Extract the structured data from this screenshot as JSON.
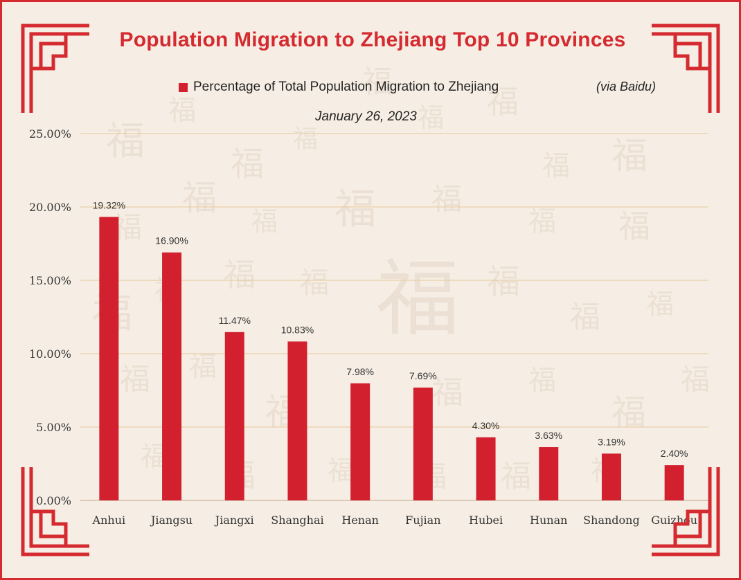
{
  "title": "Population Migration to Zhejiang Top 10 Provinces",
  "legend_label": "Percentage of Total Population Migration to Zhejiang",
  "source": "(via Baidu)",
  "date": "January 26, 2023",
  "colors": {
    "bar": "#d3202e",
    "accent": "#d42a30",
    "background": "#f6eee4",
    "grid": "#e6c89a"
  },
  "chart_data": {
    "type": "bar",
    "title": "Population Migration to Zhejiang Top 10 Provinces",
    "categories": [
      "Anhui",
      "Jiangsu",
      "Jiangxi",
      "Shanghai",
      "Henan",
      "Fujian",
      "Hubei",
      "Hunan",
      "Shandong",
      "Guizhou"
    ],
    "series": [
      {
        "name": "Percentage of Total Population Migration to Zhejiang",
        "values": [
          19.32,
          16.9,
          11.47,
          10.83,
          7.98,
          7.69,
          4.3,
          3.63,
          3.19,
          2.4
        ],
        "labels": [
          "19.32%",
          "16.90%",
          "11.47%",
          "10.83%",
          "7.98%",
          "7.69%",
          "4.30%",
          "3.63%",
          "3.19%",
          "2.40%"
        ]
      }
    ],
    "ylim": [
      0,
      25
    ],
    "yticks": [
      0,
      5,
      10,
      15,
      20,
      25
    ],
    "ytick_labels": [
      "0.00%",
      "5.00%",
      "10.00%",
      "15.00%",
      "20.00%",
      "25.00%"
    ],
    "grid": true,
    "legend_position": "top"
  }
}
